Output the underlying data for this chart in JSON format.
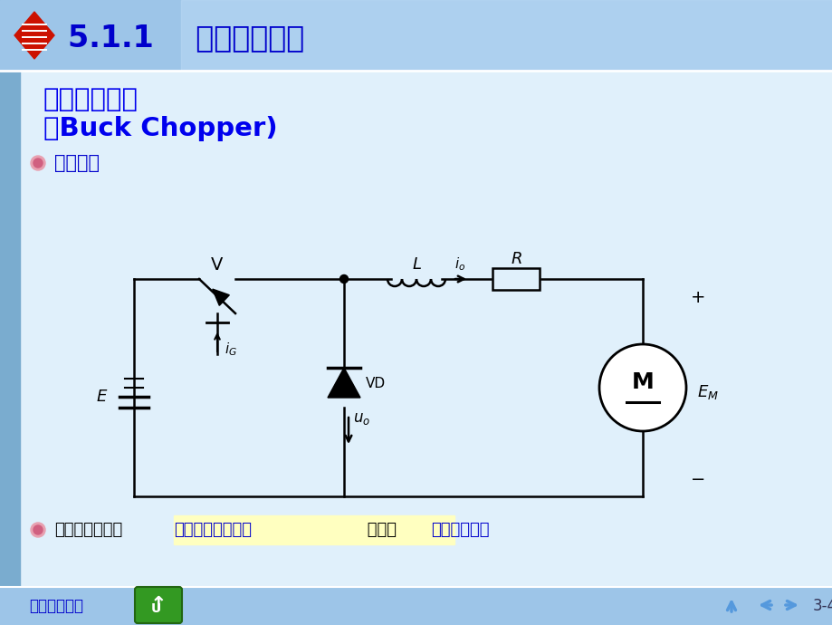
{
  "title_section": "5.1.1    降压斩波电路",
  "subtitle1": "降压斩波电路",
  "subtitle2": "（Buck Chopper)",
  "bullet1": "电路结构",
  "bullet2_part1": "典型用途之一是",
  "bullet2_part2": "拖动直流电动机， 也可带",
  "bullet2_part3": "蓄电池负载。",
  "footer_left": "电力电子技术",
  "page_num": "3-4",
  "bg_top": "#c8dff5",
  "bg_body": "#ddeeff",
  "header_bg_left": "#8ab8e0",
  "header_bg_right": "#b8d8f8",
  "title_color": "#0000cc",
  "subtitle_color": "#0000ee",
  "bullet_color": "#0000cc",
  "text_blue": "#0000cc",
  "highlight_yellow": "#ffffcc",
  "left_bar_color": "#7aaacc",
  "footer_bg": "#aaccee",
  "perec_red": "#cc2200",
  "nav_color": "#5599dd"
}
